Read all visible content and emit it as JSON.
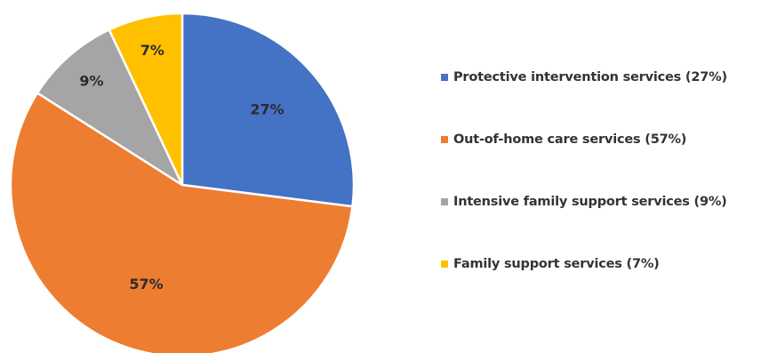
{
  "chart_data": {
    "type": "pie",
    "categories": [
      "Protective intervention services",
      "Out-of-home care services",
      "Intensive family support services",
      "Family support services"
    ],
    "values": [
      27,
      57,
      9,
      7
    ],
    "slice_labels": [
      "27%",
      "57%",
      "9%",
      "7%"
    ],
    "colors": [
      "#4472c4",
      "#ed7d31",
      "#a5a5a5",
      "#ffc000"
    ],
    "legend_position": "right",
    "start_angle_deg": 0,
    "direction": "clockwise"
  },
  "legend": {
    "items": [
      {
        "label": "Protective intervention services (27%)",
        "color": "#4472c4"
      },
      {
        "label": "Out-of-home care services (57%)",
        "color": "#ed7d31"
      },
      {
        "label": "Intensive family support services (9%)",
        "color": "#a5a5a5"
      },
      {
        "label": "Family support services (7%)",
        "color": "#ffc000"
      }
    ]
  }
}
